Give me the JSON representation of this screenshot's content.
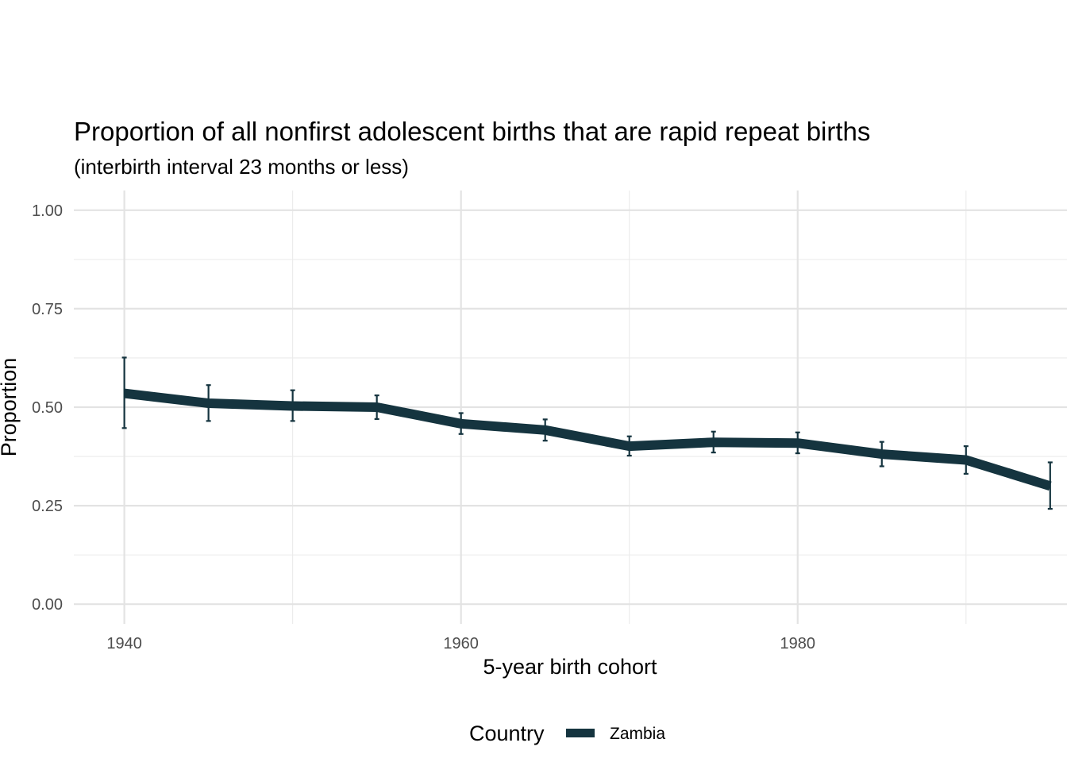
{
  "chart_data": {
    "type": "line",
    "title": "Proportion of all nonfirst adolescent births that are rapid repeat births",
    "subtitle": "(interbirth interval 23 months or less)",
    "xlabel": "5-year birth cohort",
    "ylabel": "Proportion",
    "xlim": [
      1937,
      1996
    ],
    "ylim": [
      -0.05,
      1.05
    ],
    "x_ticks": [
      1940,
      1960,
      1980
    ],
    "x_tick_labels": [
      "1940",
      "1960",
      "1980"
    ],
    "y_ticks": [
      0,
      0.25,
      0.5,
      0.75,
      1.0
    ],
    "y_tick_labels": [
      "0.00",
      "0.25",
      "0.50",
      "0.75",
      "1.00"
    ],
    "grid": true,
    "legend": {
      "title": "Country",
      "position": "bottom",
      "entries": [
        "Zambia"
      ]
    },
    "series": [
      {
        "name": "Zambia",
        "color": "#15343f",
        "x": [
          1940,
          1945,
          1950,
          1955,
          1960,
          1965,
          1970,
          1975,
          1980,
          1985,
          1990,
          1995
        ],
        "y": [
          0.535,
          0.51,
          0.503,
          0.5,
          0.458,
          0.442,
          0.401,
          0.411,
          0.409,
          0.381,
          0.366,
          0.3
        ],
        "y_lower": [
          0.447,
          0.465,
          0.465,
          0.47,
          0.432,
          0.415,
          0.377,
          0.385,
          0.383,
          0.35,
          0.331,
          0.242
        ],
        "y_upper": [
          0.626,
          0.556,
          0.543,
          0.53,
          0.485,
          0.469,
          0.426,
          0.438,
          0.436,
          0.412,
          0.401,
          0.36
        ]
      }
    ]
  }
}
